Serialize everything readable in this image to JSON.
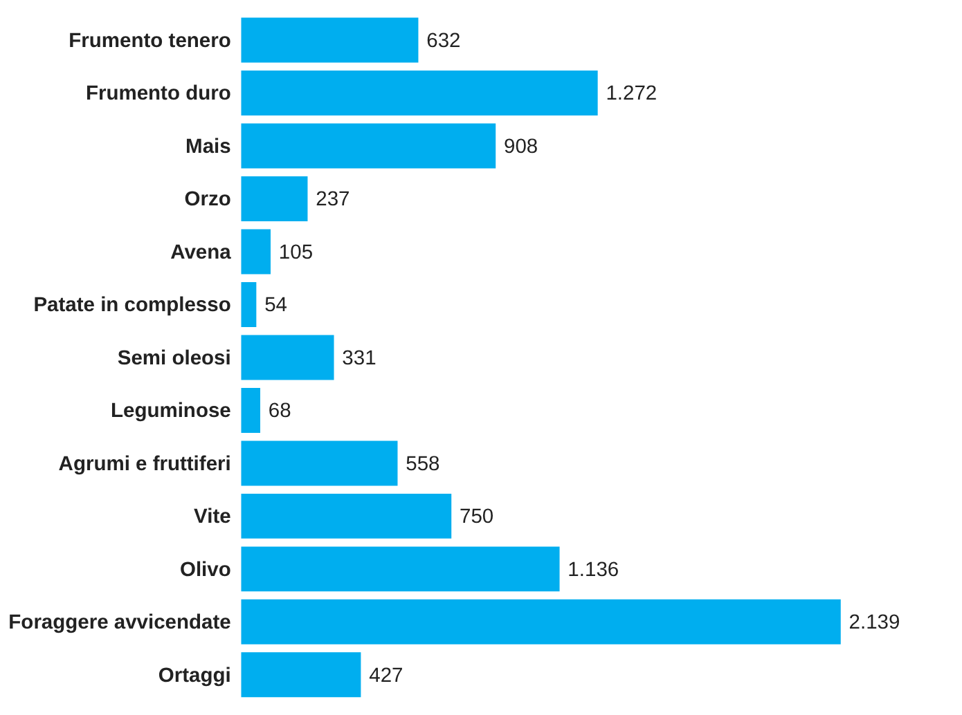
{
  "chart_data": {
    "type": "bar",
    "orientation": "horizontal",
    "color": "#00aeef",
    "categories": [
      "Frumento tenero",
      "Frumento duro",
      "Mais",
      "Orzo",
      "Avena",
      "Patate in complesso",
      "Semi oleosi",
      "Leguminose",
      "Agrumi  e fruttiferi",
      "Vite",
      "Olivo",
      "Foraggere avvicendate",
      "Ortaggi"
    ],
    "values": [
      632,
      1272,
      908,
      237,
      105,
      54,
      331,
      68,
      558,
      750,
      1136,
      2139,
      427
    ],
    "value_labels": [
      "632",
      "1.272",
      "908",
      "237",
      "105",
      "54",
      "331",
      "68",
      "558",
      "750",
      "1.136",
      "2.139",
      "427"
    ],
    "grid": false
  }
}
